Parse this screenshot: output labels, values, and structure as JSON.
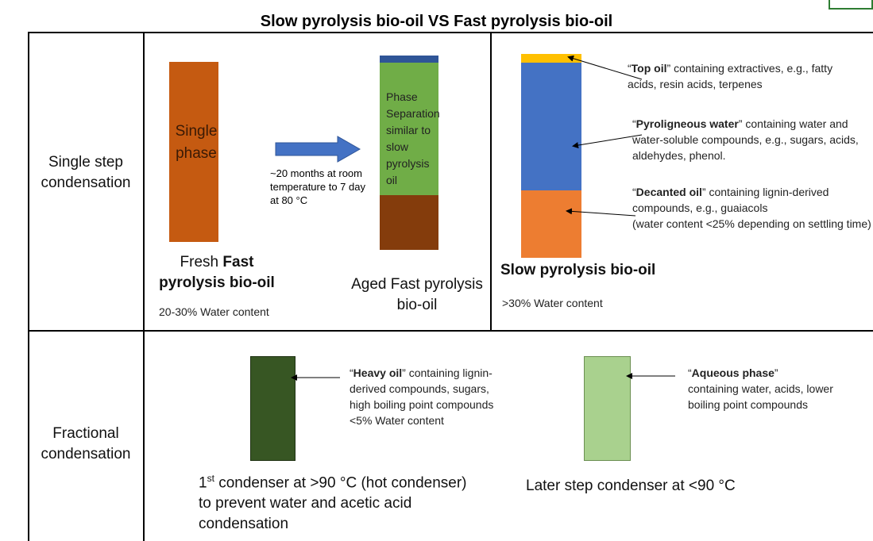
{
  "title": "Slow pyrolysis bio-oil VS Fast pyrolysis bio-oil",
  "quote_open": "“",
  "quote_close": "”",
  "row_labels": [
    "Single step condensation",
    "Fractional condensation"
  ],
  "fresh": {
    "box_label": "Single phase",
    "caption_prefix": "Fresh ",
    "caption_bold": "Fast pyrolysis bio-oil",
    "note": "20-30% Water content"
  },
  "arrow_note": "~20 months at room temperature to 7 day at 80 °C",
  "aged": {
    "box_label": "Phase Separation similar to slow pyrolysis oil",
    "caption": "Aged Fast pyrolysis bio-oil"
  },
  "slow": {
    "layers": [
      {
        "name": "Top oil",
        "description": "containing extractives, e.g., fatty acids, resin acids, terpenes"
      },
      {
        "name": "Pyroligneous water",
        "description": "containing water and water-soluble compounds, e.g., sugars, acids, aldehydes, phenol."
      },
      {
        "name": "Decanted oil",
        "description": "containing lignin-derived compounds, e.g., guaiacols",
        "note": "(water content <25% depending on settling time)"
      }
    ],
    "caption": "Slow pyrolysis bio-oil",
    "note": ">30% Water content"
  },
  "heavy": {
    "name": "Heavy oil",
    "description": "containing lignin-derived compounds, sugars, high boiling point compounds",
    "note": "<5% Water content",
    "caption_num": "1",
    "caption_sup": "st",
    "caption_rest": " condenser at >90 °C (hot condenser) to prevent water and acetic acid condensation"
  },
  "aqueous": {
    "name": "Aqueous phase",
    "description": "containing water, acids, lower boiling point compounds",
    "caption": "Later step condenser at <90 °C"
  }
}
